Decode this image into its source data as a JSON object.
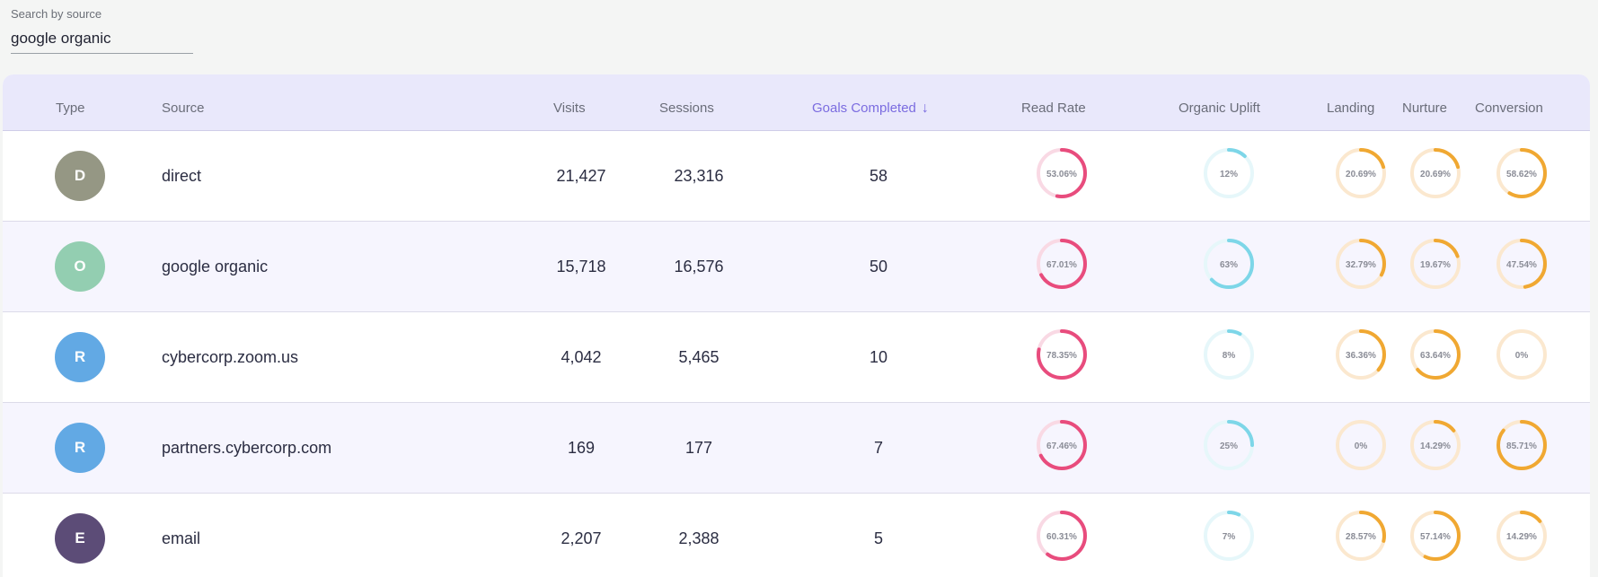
{
  "search": {
    "label": "Search by source",
    "value": "google organic"
  },
  "columns": {
    "type": "Type",
    "source": "Source",
    "visits": "Visits",
    "sessions": "Sessions",
    "goals": "Goals Completed",
    "read_rate": "Read Rate",
    "organic_uplift": "Organic Uplift",
    "landing": "Landing",
    "nurture": "Nurture",
    "conversion": "Conversion"
  },
  "colors": {
    "read_rate": "#e84c7d",
    "read_rate_track": "#f9d9e4",
    "organic_uplift": "#7dd6e8",
    "organic_uplift_track": "#e6f7fa",
    "funnel": "#f0a832",
    "funnel_track": "#fbe8cf"
  },
  "rows": [
    {
      "initial": "D",
      "avatar_color": "#959784",
      "source": "direct",
      "visits": "21,427",
      "sessions": "23,316",
      "goals": "58",
      "read_rate": {
        "label": "53.06%",
        "value": 53.06
      },
      "organic_uplift": {
        "label": "12%",
        "value": 12
      },
      "landing": {
        "label": "20.69%",
        "value": 20.69
      },
      "nurture": {
        "label": "20.69%",
        "value": 20.69
      },
      "conversion": {
        "label": "58.62%",
        "value": 58.62
      }
    },
    {
      "initial": "O",
      "avatar_color": "#93ceb1",
      "source": "google organic",
      "visits": "15,718",
      "sessions": "16,576",
      "goals": "50",
      "read_rate": {
        "label": "67.01%",
        "value": 67.01
      },
      "organic_uplift": {
        "label": "63%",
        "value": 63
      },
      "landing": {
        "label": "32.79%",
        "value": 32.79
      },
      "nurture": {
        "label": "19.67%",
        "value": 19.67
      },
      "conversion": {
        "label": "47.54%",
        "value": 47.54
      }
    },
    {
      "initial": "R",
      "avatar_color": "#62a9e4",
      "source": "cybercorp.zoom.us",
      "visits": "4,042",
      "sessions": "5,465",
      "goals": "10",
      "read_rate": {
        "label": "78.35%",
        "value": 78.35
      },
      "organic_uplift": {
        "label": "8%",
        "value": 8
      },
      "landing": {
        "label": "36.36%",
        "value": 36.36
      },
      "nurture": {
        "label": "63.64%",
        "value": 63.64
      },
      "conversion": {
        "label": "0%",
        "value": 0
      }
    },
    {
      "initial": "R",
      "avatar_color": "#62a9e4",
      "source": "partners.cybercorp.com",
      "visits": "169",
      "sessions": "177",
      "goals": "7",
      "read_rate": {
        "label": "67.46%",
        "value": 67.46
      },
      "organic_uplift": {
        "label": "25%",
        "value": 25
      },
      "landing": {
        "label": "0%",
        "value": 0
      },
      "nurture": {
        "label": "14.29%",
        "value": 14.29
      },
      "conversion": {
        "label": "85.71%",
        "value": 85.71
      }
    },
    {
      "initial": "E",
      "avatar_color": "#5c4c77",
      "source": "email",
      "visits": "2,207",
      "sessions": "2,388",
      "goals": "5",
      "read_rate": {
        "label": "60.31%",
        "value": 60.31
      },
      "organic_uplift": {
        "label": "7%",
        "value": 7
      },
      "landing": {
        "label": "28.57%",
        "value": 28.57
      },
      "nurture": {
        "label": "57.14%",
        "value": 57.14
      },
      "conversion": {
        "label": "14.29%",
        "value": 14.29
      }
    }
  ]
}
